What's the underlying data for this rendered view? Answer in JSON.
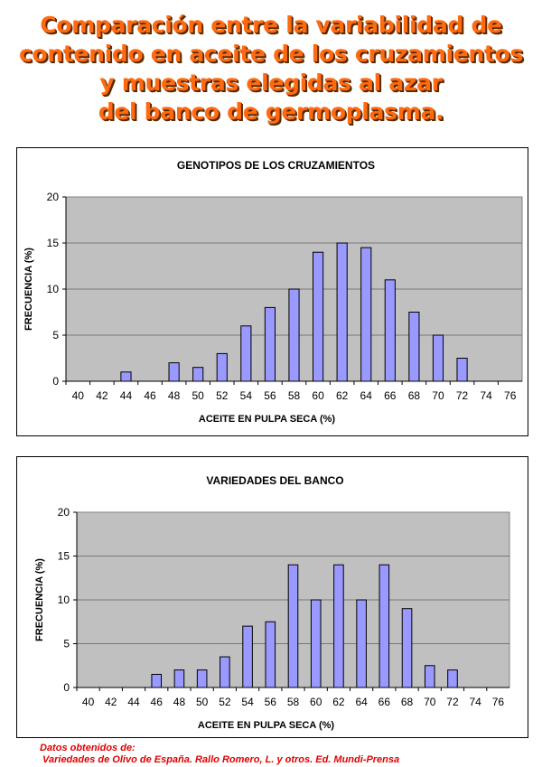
{
  "title_lines": [
    "Comparación entre la variabilidad de",
    "contenido en aceite de los cruzamientos",
    "y muestras elegidas al azar",
    "del banco de germoplasma."
  ],
  "chart_data": [
    {
      "type": "bar",
      "title": "GENOTIPOS DE LOS CRUZAMIENTOS",
      "xlabel": "ACEITE EN PULPA SECA (%)",
      "ylabel": "FRECUENCIA (%)",
      "categories": [
        "40",
        "42",
        "44",
        "46",
        "48",
        "50",
        "52",
        "54",
        "56",
        "58",
        "60",
        "62",
        "64",
        "66",
        "68",
        "70",
        "72",
        "74",
        "76"
      ],
      "values": [
        0,
        0,
        1,
        0,
        2,
        1.5,
        3,
        6,
        8,
        10,
        14,
        15,
        14.5,
        11,
        7.5,
        5,
        2.5,
        0,
        0
      ],
      "ylim": [
        0,
        20
      ],
      "yticks": [
        0,
        5,
        10,
        15,
        20
      ],
      "grid": true,
      "bar_color": "#9999ff",
      "plot_bg": "#c0c0c0"
    },
    {
      "type": "bar",
      "title": "VARIEDADES DEL BANCO",
      "xlabel": "ACEITE EN PULPA SECA (%)",
      "ylabel": "FRECUENCIA (%)",
      "categories": [
        "40",
        "42",
        "44",
        "46",
        "48",
        "50",
        "52",
        "54",
        "56",
        "58",
        "60",
        "62",
        "64",
        "66",
        "68",
        "70",
        "72",
        "74",
        "76"
      ],
      "values": [
        0,
        0,
        0,
        1.5,
        2,
        2,
        3.5,
        7,
        7.5,
        14,
        10,
        14,
        10,
        14,
        9,
        2.5,
        2,
        0,
        0
      ],
      "ylim": [
        0,
        20
      ],
      "yticks": [
        0,
        5,
        10,
        15,
        20
      ],
      "grid": true,
      "bar_color": "#9999ff",
      "plot_bg": "#c0c0c0"
    }
  ],
  "footnote": {
    "line1": "Datos obtenidos de:",
    "line2": " Variedades de Olivo de España. Rallo Romero, L. y otros. Ed. Mundi-Prensa"
  }
}
